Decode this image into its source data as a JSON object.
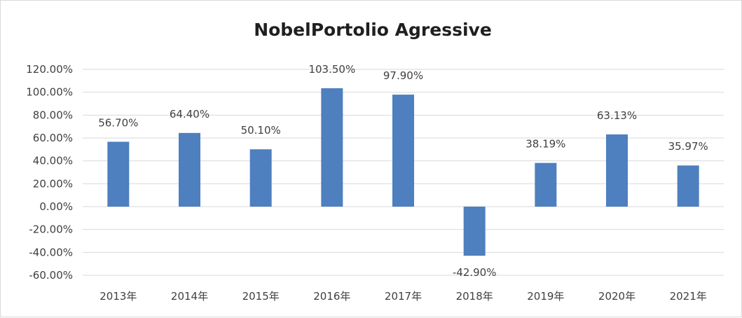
{
  "chart_data": {
    "type": "bar",
    "title": "NobelPortolio Agressive",
    "xlabel": "",
    "ylabel": "",
    "categories": [
      "2013年",
      "2014年",
      "2015年",
      "2016年",
      "2017年",
      "2018年",
      "2019年",
      "2020年",
      "2021年"
    ],
    "values": [
      56.7,
      64.4,
      50.1,
      103.5,
      97.9,
      -42.9,
      38.19,
      63.13,
      35.97
    ],
    "data_labels": [
      "56.70%",
      "64.40%",
      "50.10%",
      "103.50%",
      "97.90%",
      "-42.90%",
      "38.19%",
      "63.13%",
      "35.97%"
    ],
    "ylim": [
      -60,
      120
    ],
    "yticks": [
      120,
      100,
      80,
      60,
      40,
      20,
      0,
      -20,
      -40,
      -60
    ],
    "ytick_labels": [
      "120.00%",
      "100.00%",
      "80.00%",
      "60.00%",
      "40.00%",
      "20.00%",
      "0.00%",
      "-20.00%",
      "-40.00%",
      "-60.00%"
    ],
    "grid": true,
    "legend": "none",
    "bar_color": "#4e7fbf"
  }
}
